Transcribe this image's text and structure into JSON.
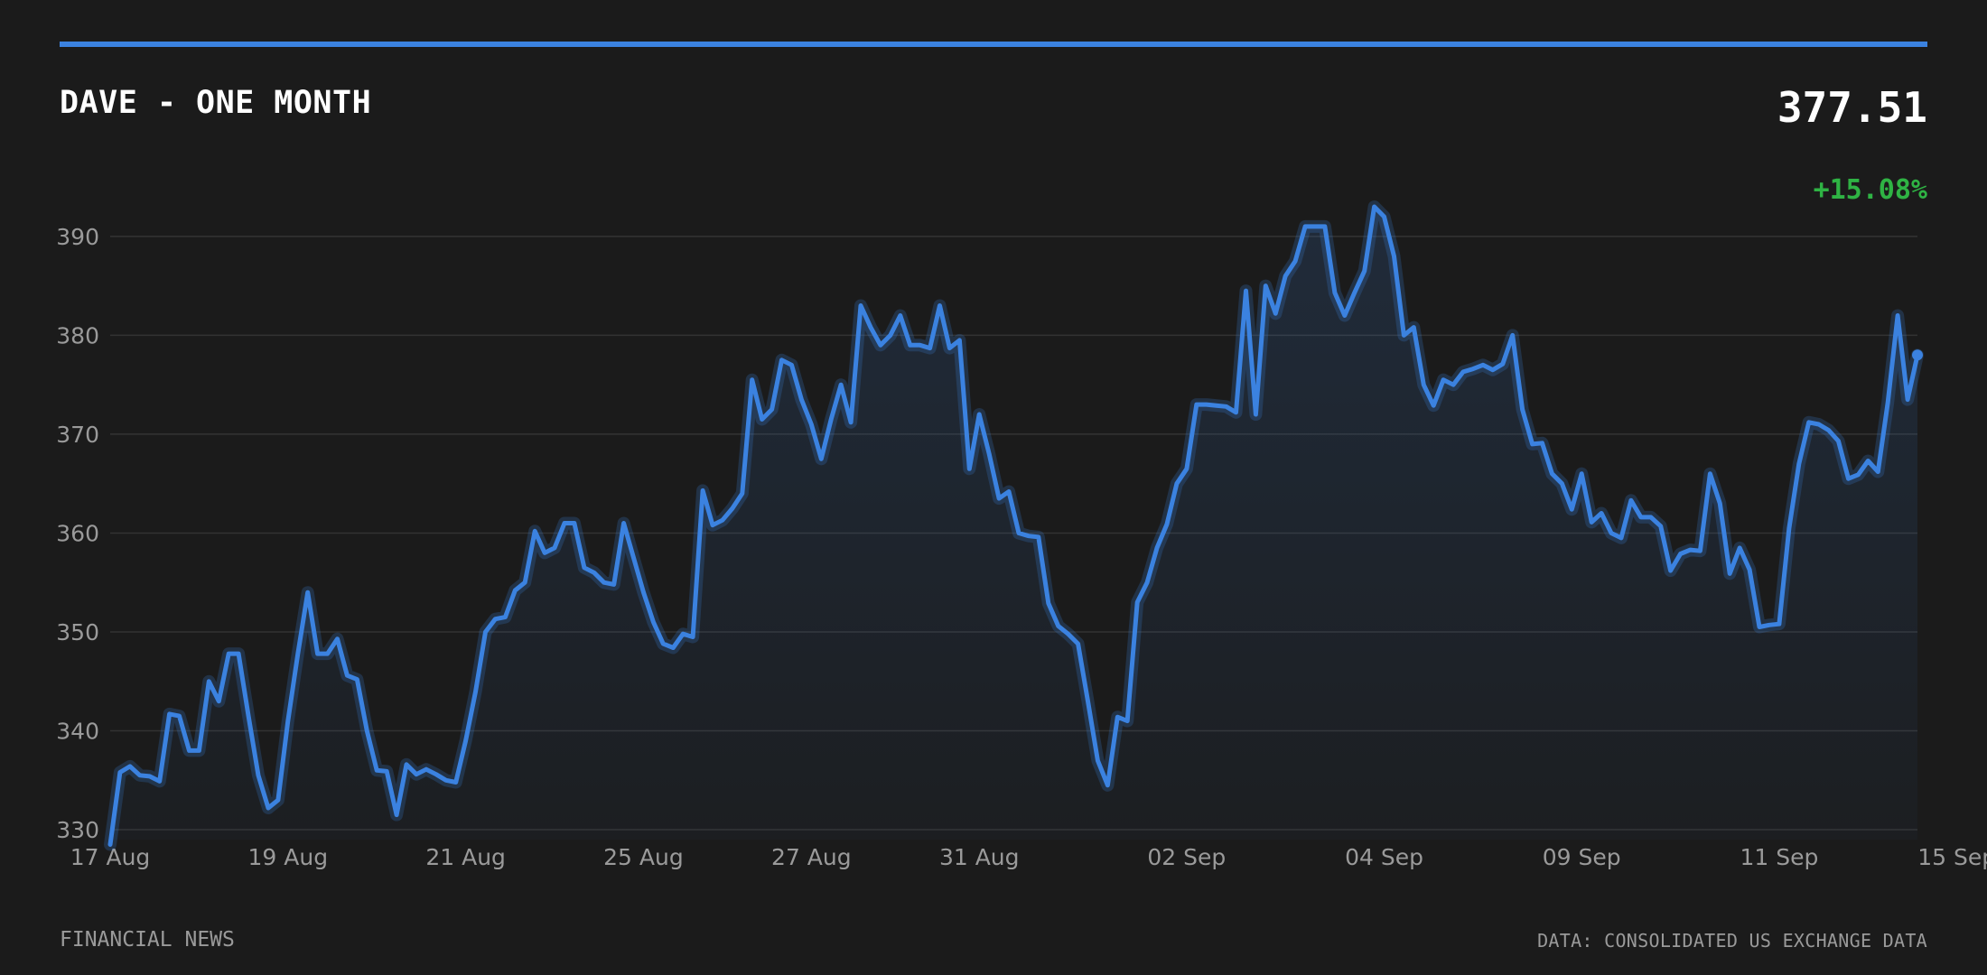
{
  "header": {
    "title": "DAVE - ONE MONTH",
    "price": "377.51",
    "change": "+15.08%"
  },
  "footer": {
    "source_left": "FINANCIAL NEWS",
    "source_right": "DATA: CONSOLIDATED US EXCHANGE DATA"
  },
  "colors": {
    "accent": "#3b82e0",
    "positive": "#2fb344",
    "background": "#1b1b1b",
    "grid": "#333333",
    "tick_text": "#9a9a9a"
  },
  "chart_data": {
    "type": "line",
    "title": "DAVE - ONE MONTH",
    "xlabel": "",
    "ylabel": "",
    "ylim": [
      329,
      393
    ],
    "yticks": [
      330,
      340,
      350,
      360,
      370,
      380,
      390
    ],
    "grid": true,
    "xtick_labels": [
      "17 Aug",
      "19 Aug",
      "21 Aug",
      "25 Aug",
      "27 Aug",
      "31 Aug",
      "02 Sep",
      "04 Sep",
      "09 Sep",
      "11 Sep",
      "15 Sep"
    ],
    "xtick_index": [
      0,
      18,
      36,
      54,
      71,
      88,
      109,
      129,
      149,
      169,
      187
    ],
    "series": [
      {
        "values": [
          328.5,
          335.8,
          336.4,
          335.5,
          335.4,
          334.9,
          341.7,
          341.5,
          338.0,
          338.0,
          345.0,
          343.0,
          347.8,
          347.8,
          341.5,
          335.5,
          332.2,
          333.0,
          341.0,
          347.8,
          354.0,
          347.8,
          347.8,
          349.3,
          345.6,
          345.2,
          340.0,
          336.0,
          335.9,
          331.5,
          336.6,
          335.6,
          336.1,
          335.6,
          335.0,
          334.8,
          339.0,
          344.0,
          350.0,
          351.3,
          351.5,
          354.2,
          355.0,
          360.2,
          358.0,
          358.5,
          361.0,
          361.0,
          356.5,
          356.0,
          355.0,
          354.8,
          361.0,
          357.5,
          354.0,
          351.0,
          348.8,
          348.4,
          349.8,
          349.5,
          364.3,
          360.8,
          361.3,
          362.5,
          364.0,
          375.5,
          371.5,
          372.5,
          377.5,
          377.0,
          373.5,
          371.0,
          367.5,
          371.5,
          375.0,
          371.2,
          383.0,
          380.8,
          379.0,
          380.0,
          382.0,
          379.0,
          379.0,
          378.7,
          383.0,
          378.7,
          379.5,
          366.5,
          372.0,
          368.0,
          363.5,
          364.2,
          360.0,
          359.7,
          359.6,
          352.9,
          350.6,
          349.8,
          348.8,
          343.0,
          337.0,
          334.5,
          341.4,
          341.0,
          353.0,
          355.0,
          358.5,
          360.9,
          365.0,
          366.5,
          373.0,
          373.0,
          372.9,
          372.8,
          372.2,
          384.5,
          372.0,
          385.0,
          382.2,
          386.0,
          387.5,
          391.0,
          391.0,
          391.0,
          384.3,
          382.0,
          384.3,
          386.5,
          393.0,
          392.0,
          388.0,
          380.0,
          380.8,
          375.0,
          372.9,
          375.5,
          375.0,
          376.3,
          376.6,
          377.0,
          376.5,
          377.1,
          380.0,
          372.5,
          369.0,
          369.1,
          366.0,
          365.0,
          362.4,
          366.0,
          361.1,
          362.0,
          360.0,
          359.5,
          363.3,
          361.6,
          361.6,
          360.7,
          356.2,
          357.9,
          358.3,
          358.2,
          366.0,
          363.0,
          355.9,
          358.5,
          356.3,
          350.5,
          350.7,
          350.8,
          360.5,
          367.0,
          371.2,
          371.0,
          370.4,
          369.3,
          365.5,
          365.9,
          367.3,
          366.2,
          373.2,
          382.0,
          373.5,
          378.0
        ]
      }
    ]
  }
}
